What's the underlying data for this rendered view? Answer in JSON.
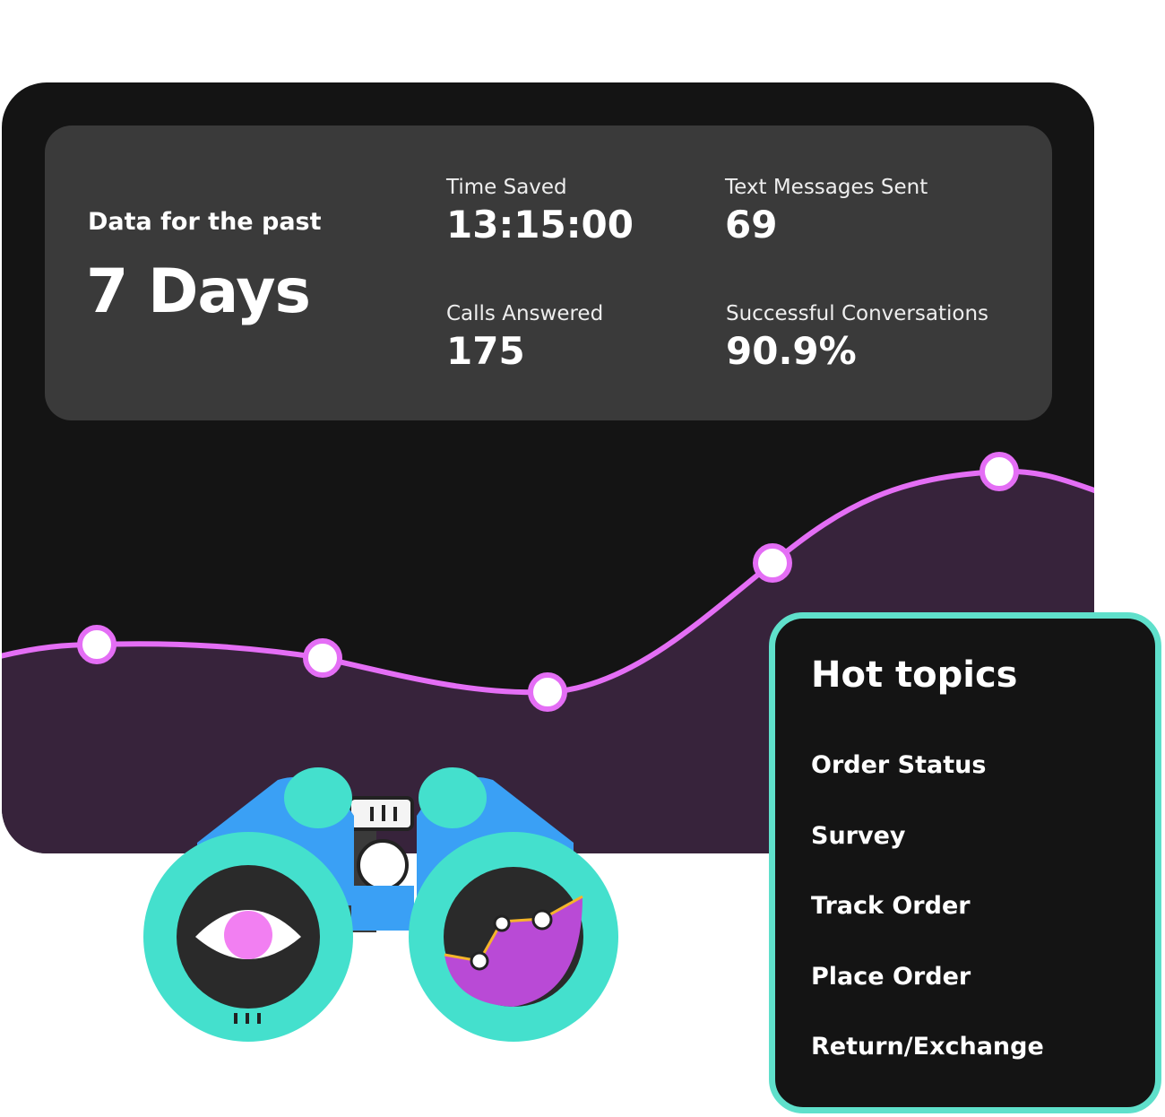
{
  "summary": {
    "period_label": "Data for the past",
    "period_value": "7 Days"
  },
  "stats": [
    {
      "label": "Time Saved",
      "value": "13:15:00"
    },
    {
      "label": "Text Messages Sent",
      "value": "69"
    },
    {
      "label": "Calls Answered",
      "value": "175"
    },
    {
      "label": "Successful Conversations",
      "value": "90.9%"
    }
  ],
  "hot_topics": {
    "title": "Hot topics",
    "items": [
      "Order Status",
      "Survey",
      "Track Order",
      "Place Order",
      "Return/Exchange"
    ]
  },
  "colors": {
    "card_bg": "#141414",
    "panel_bg": "#3a3a3a",
    "line": "#e46ef5",
    "area": "#37233b",
    "accent_teal": "#5fe0cb"
  },
  "illustration": "binoculars-icon"
}
